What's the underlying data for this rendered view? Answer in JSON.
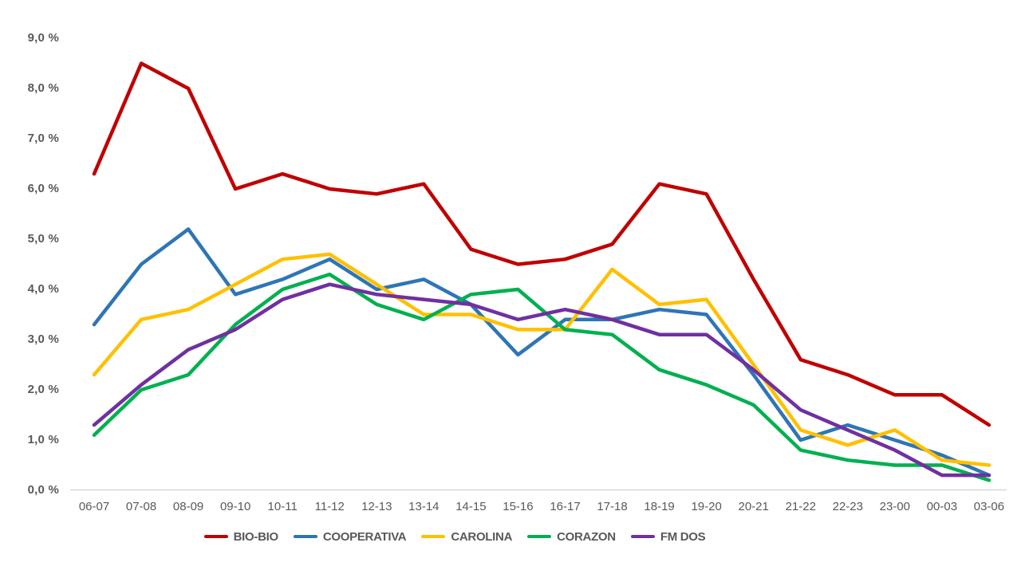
{
  "chart_data": {
    "type": "line",
    "categories": [
      "06-07",
      "07-08",
      "08-09",
      "09-10",
      "10-11",
      "11-12",
      "12-13",
      "13-14",
      "14-15",
      "15-16",
      "16-17",
      "17-18",
      "18-19",
      "19-20",
      "20-21",
      "21-22",
      "22-23",
      "23-00",
      "00-03",
      "03-06"
    ],
    "series": [
      {
        "name": "BIO-BIO",
        "color": "#C00000",
        "values": [
          6.3,
          8.5,
          8.0,
          6.0,
          6.3,
          6.0,
          5.9,
          6.1,
          4.8,
          4.5,
          4.6,
          4.9,
          6.1,
          5.9,
          4.2,
          2.6,
          2.3,
          1.9,
          1.9,
          1.3
        ]
      },
      {
        "name": "COOPERATIVA",
        "color": "#2E75B6",
        "values": [
          3.3,
          4.5,
          5.2,
          3.9,
          4.2,
          4.6,
          4.0,
          4.2,
          3.7,
          2.7,
          3.4,
          3.4,
          3.6,
          3.5,
          2.3,
          1.0,
          1.3,
          1.0,
          0.7,
          0.3
        ]
      },
      {
        "name": "CAROLINA",
        "color": "#FFC000",
        "values": [
          2.3,
          3.4,
          3.6,
          4.1,
          4.6,
          4.7,
          4.1,
          3.5,
          3.5,
          3.2,
          3.2,
          4.4,
          3.7,
          3.8,
          2.5,
          1.2,
          0.9,
          1.2,
          0.6,
          0.5
        ]
      },
      {
        "name": "CORAZON",
        "color": "#00B050",
        "values": [
          1.1,
          2.0,
          2.3,
          3.3,
          4.0,
          4.3,
          3.7,
          3.4,
          3.9,
          4.0,
          3.2,
          3.1,
          2.4,
          2.1,
          1.7,
          0.8,
          0.6,
          0.5,
          0.5,
          0.2
        ]
      },
      {
        "name": "FM DOS",
        "color": "#7030A0",
        "values": [
          1.3,
          2.1,
          2.8,
          3.2,
          3.8,
          4.1,
          3.9,
          3.8,
          3.7,
          3.4,
          3.6,
          3.4,
          3.1,
          3.1,
          2.4,
          1.6,
          1.2,
          0.8,
          0.3,
          0.3
        ]
      }
    ],
    "y_axis": {
      "min": 0,
      "max": 9,
      "step": 1,
      "ticks": [
        "0,0 %",
        "1,0 %",
        "2,0 %",
        "3,0 %",
        "4,0 %",
        "5,0 %",
        "6,0 %",
        "7,0 %",
        "8,0 %",
        "9,0 %"
      ]
    },
    "x_axis": {
      "ticks": [
        "06-07",
        "07-08",
        "08-09",
        "09-10",
        "10-11",
        "11-12",
        "12-13",
        "13-14",
        "14-15",
        "15-16",
        "16-17",
        "17-18",
        "18-19",
        "19-20",
        "20-21",
        "21-22",
        "22-23",
        "23-00",
        "00-03",
        "03-06"
      ]
    },
    "legend": {
      "position": "bottom",
      "entries": [
        "BIO-BIO",
        "COOPERATIVA",
        "CAROLINA",
        "CORAZON",
        "FM DOS"
      ]
    },
    "grid": false,
    "text_color": "#595959",
    "axis_line_color": "#D9D9D9"
  }
}
